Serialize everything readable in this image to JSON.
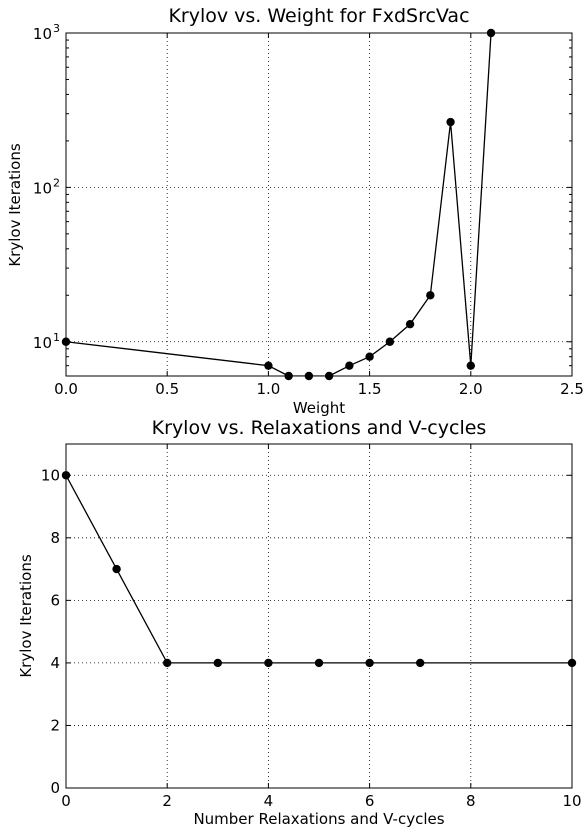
{
  "chart_data": [
    {
      "type": "line",
      "title": "Krylov vs. Weight for FxdSrcVac",
      "xlabel": "Weight",
      "ylabel": "Krylov Iterations",
      "xlim": [
        0.0,
        2.5
      ],
      "ylim": [
        6,
        1000
      ],
      "yscale": "log",
      "grid": true,
      "x_ticks": [
        "0.0",
        "0.5",
        "1.0",
        "1.5",
        "2.0",
        "2.5"
      ],
      "y_ticks": [
        {
          "base": "10",
          "exp": "1"
        },
        {
          "base": "10",
          "exp": "2"
        },
        {
          "base": "10",
          "exp": "3"
        }
      ],
      "x": [
        0.0,
        1.0,
        1.1,
        1.2,
        1.3,
        1.4,
        1.5,
        1.6,
        1.7,
        1.8,
        1.9,
        2.0,
        2.1
      ],
      "y": [
        10,
        7,
        6,
        6,
        6,
        7,
        8,
        10,
        13,
        20,
        265,
        7,
        1000
      ],
      "color": "#000000"
    },
    {
      "type": "line",
      "title": "Krylov vs. Relaxations and V-cycles",
      "xlabel": "Number Relaxations and V-cycles",
      "ylabel": "Krylov Iterations",
      "xlim": [
        0,
        10
      ],
      "ylim": [
        0,
        11
      ],
      "yscale": "linear",
      "grid": true,
      "x_ticks": [
        "0",
        "2",
        "4",
        "6",
        "8",
        "10"
      ],
      "y_ticks": [
        "0",
        "2",
        "4",
        "6",
        "8",
        "10"
      ],
      "x": [
        0,
        1,
        2,
        3,
        4,
        5,
        6,
        7,
        10
      ],
      "y": [
        10,
        7,
        4,
        4,
        4,
        4,
        4,
        4,
        4
      ],
      "color": "#000000"
    }
  ]
}
